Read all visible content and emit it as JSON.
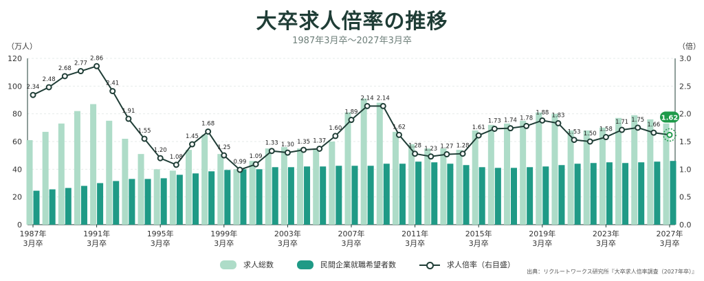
{
  "title": "大卒求人倍率の推移",
  "subtitle": "1987年3月卒〜2027年3月卒",
  "source": "出典：リクルートワークス研究所『大卒求人倍率調査（2027年卒）』",
  "legend": {
    "total": "求人総数",
    "applicants": "民間企業就職希望者数",
    "ratio": "求人倍率（右目盛）"
  },
  "chart_data": {
    "type": "bar",
    "y_left_unit": "（万人）",
    "y_right_unit": "（倍）",
    "ylim_left": [
      0,
      120
    ],
    "ylim_right": [
      0,
      3.0
    ],
    "y_left_ticks": [
      "0",
      "20",
      "40",
      "60",
      "80",
      "100",
      "120"
    ],
    "y_right_ticks": [
      "0.0",
      "0.5",
      "1.0",
      "1.5",
      "2.0",
      "2.5",
      "3.0"
    ],
    "x_tick_labels": [
      {
        "year": "1987年",
        "line2": "3月卒",
        "index": 0
      },
      {
        "year": "1991年",
        "line2": "3月卒",
        "index": 4
      },
      {
        "year": "1995年",
        "line2": "3月卒",
        "index": 8
      },
      {
        "year": "1999年",
        "line2": "3月卒",
        "index": 12
      },
      {
        "year": "2003年",
        "line2": "3月卒",
        "index": 16
      },
      {
        "year": "2007年",
        "line2": "3月卒",
        "index": 20
      },
      {
        "year": "2011年",
        "line2": "3月卒",
        "index": 24
      },
      {
        "year": "2015年",
        "line2": "3月卒",
        "index": 28
      },
      {
        "year": "2019年",
        "line2": "3月卒",
        "index": 32
      },
      {
        "year": "2023年",
        "line2": "3月卒",
        "index": 36
      },
      {
        "year": "2027年",
        "line2": "3月卒",
        "index": 40
      }
    ],
    "years": [
      1987,
      1988,
      1989,
      1990,
      1991,
      1992,
      1993,
      1994,
      1995,
      1996,
      1997,
      1998,
      1999,
      2000,
      2001,
      2002,
      2003,
      2004,
      2005,
      2006,
      2007,
      2008,
      2009,
      2010,
      2011,
      2012,
      2013,
      2014,
      2015,
      2016,
      2017,
      2018,
      2019,
      2020,
      2021,
      2022,
      2023,
      2024,
      2025,
      2026,
      2027
    ],
    "series": [
      {
        "name": "求人総数",
        "type": "bar",
        "axis": "left",
        "color": "#aedcc8",
        "values": [
          61,
          67,
          73,
          82,
          87,
          75,
          62,
          51,
          40,
          39,
          54,
          65,
          51,
          40,
          46,
          55,
          56,
          55,
          55,
          60,
          81,
          91,
          88,
          67,
          58,
          55,
          55,
          54,
          68,
          72,
          73,
          75,
          81,
          80,
          68,
          68,
          70,
          77,
          79,
          76,
          73
        ]
      },
      {
        "name": "民間企業就職希望者数",
        "type": "bar",
        "axis": "left",
        "color": "#1f9a86",
        "values": [
          24.5,
          25.5,
          26.5,
          28,
          30,
          31.5,
          33,
          33,
          33.5,
          36,
          37,
          38.5,
          39.5,
          40,
          40,
          41.5,
          41.5,
          42,
          42,
          42.5,
          42.5,
          42.5,
          44,
          44,
          45.5,
          45,
          44,
          43,
          41.5,
          41,
          41,
          41.5,
          42,
          43,
          44,
          44.5,
          45,
          44.5,
          45,
          45.5,
          46
        ]
      },
      {
        "name": "求人倍率",
        "type": "line",
        "axis": "right",
        "color": "#1f3d36",
        "values": [
          2.34,
          2.48,
          2.68,
          2.77,
          2.86,
          2.41,
          1.91,
          1.55,
          1.2,
          1.08,
          1.45,
          1.68,
          1.25,
          0.99,
          1.09,
          1.33,
          1.3,
          1.35,
          1.37,
          1.6,
          1.89,
          2.14,
          2.14,
          1.62,
          1.28,
          1.23,
          1.27,
          1.28,
          1.61,
          1.73,
          1.74,
          1.78,
          1.88,
          1.83,
          1.53,
          1.5,
          1.58,
          1.71,
          1.75,
          1.66,
          1.62
        ],
        "labels": [
          "2.34",
          "2.48",
          "2.68",
          "2.77",
          "2.86",
          "2.41",
          "1.91",
          "1.55",
          "1.20",
          "1.08",
          "1.45",
          "1.68",
          "1.25",
          "0.99",
          "1.09",
          "1.33",
          "1.30",
          "1.35",
          "1.37",
          "1.60",
          "1.89",
          "2.14",
          "2.14",
          "1.62",
          "1.28",
          "1.23",
          "1.27",
          "1.28",
          "1.61",
          "1.73",
          "1.74",
          "1.78",
          "1.88",
          "1.83",
          "1.53",
          "1.50",
          "1.58",
          "1.71",
          "1.75",
          "1.66",
          "1.62"
        ],
        "highlight_last": true,
        "highlight_color": "#1f9a4a"
      }
    ],
    "grid": true
  }
}
